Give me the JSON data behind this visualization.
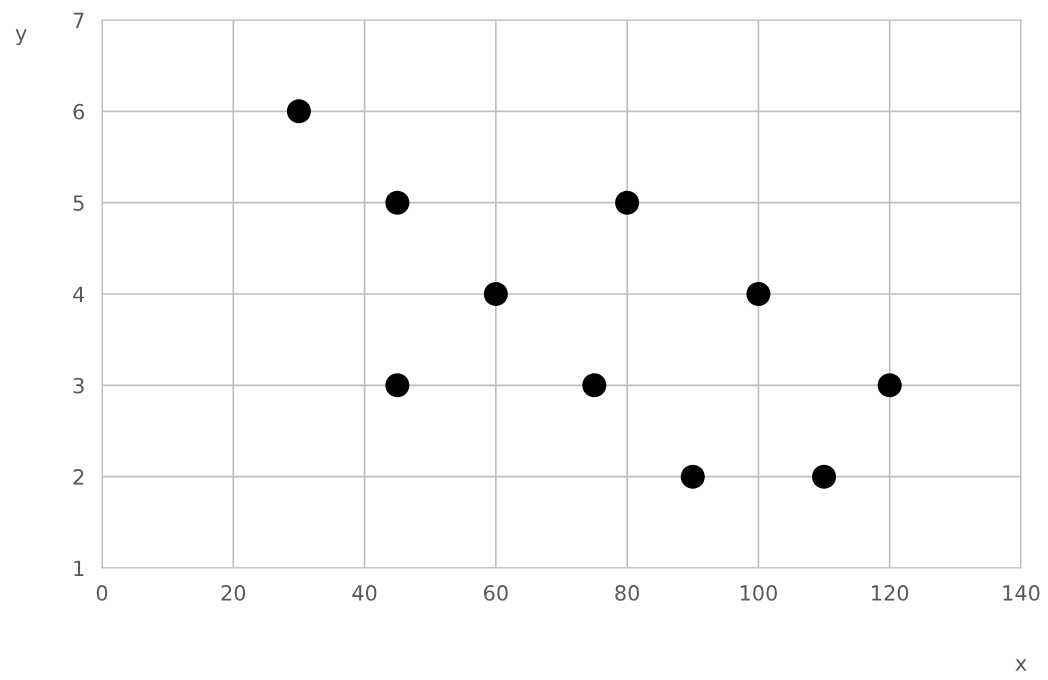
{
  "chart_data": {
    "type": "scatter",
    "xlabel": "x",
    "ylabel": "y",
    "x": [
      30,
      45,
      45,
      60,
      75,
      80,
      90,
      100,
      110,
      120
    ],
    "values": [
      6,
      5,
      3,
      4,
      3,
      5,
      2,
      4,
      2,
      3
    ],
    "color": "#000000",
    "marker": "circle",
    "xlim": [
      0,
      140
    ],
    "xticks": [
      0,
      20,
      40,
      60,
      80,
      100,
      120,
      140
    ],
    "ylim": [
      1,
      7
    ],
    "yticks": [
      1,
      2,
      3,
      4,
      5,
      6,
      7
    ],
    "grid": true
  }
}
